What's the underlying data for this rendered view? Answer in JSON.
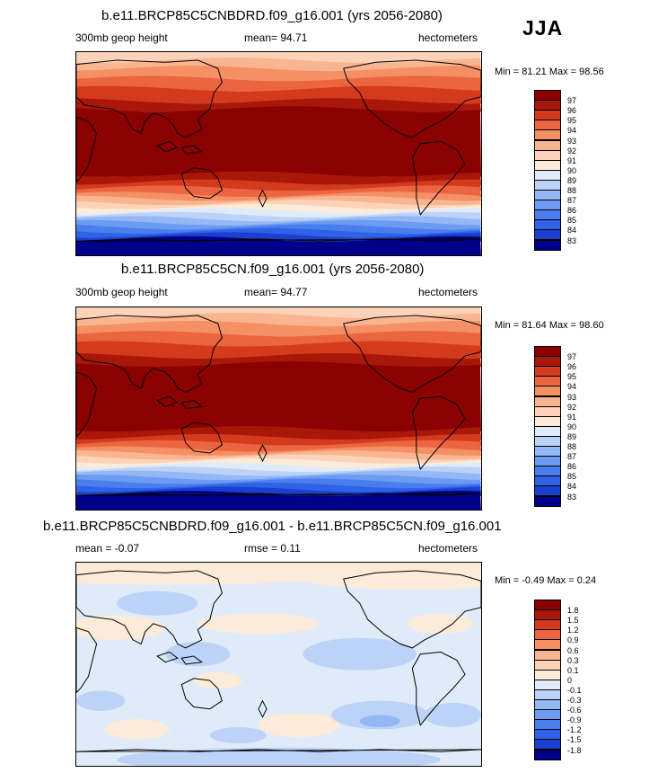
{
  "season": "JJA",
  "panels": [
    {
      "title": "b.e11.BRCP85C5CNBDRD.f09_g16.001 (yrs 2056-2080)",
      "left_label": "300mb geop height",
      "center_label": "mean=  94.71",
      "right_label": "hectometers",
      "minmax": "Min =  81.21 Max =  98.56"
    },
    {
      "title": "b.e11.BRCP85C5CN.f09_g16.001 (yrs 2056-2080)",
      "left_label": "300mb geop height",
      "center_label": "mean=  94.77",
      "right_label": "hectometers",
      "minmax": "Min =  81.64 Max =  98.60"
    },
    {
      "title": "b.e11.BRCP85C5CNBDRD.f09_g16.001 - b.e11.BRCP85C5CN.f09_g16.001",
      "left_label": "mean =  -0.07",
      "center_label": "rmse =   0.11",
      "right_label": "hectometers",
      "minmax": "Min = -0.49 Max =   0.24"
    }
  ],
  "chart_data": [
    {
      "type": "heatmap",
      "title": "b.e11.BRCP85C5CNBDRD.f09_g16.001 (yrs 2056-2080)",
      "variable": "300mb geop height",
      "units": "hectometers",
      "mean": 94.71,
      "min": 81.21,
      "max": 98.56,
      "levels": [
        "83",
        "84",
        "85",
        "86",
        "87",
        "88",
        "89",
        "90",
        "91",
        "92",
        "93",
        "94",
        "95",
        "96",
        "97"
      ],
      "colors": [
        "#00008a",
        "#1b3fcf",
        "#2f62e6",
        "#4a7eef",
        "#6d9bf2",
        "#94b8f5",
        "#bcd3f7",
        "#e0ebfa",
        "#fcebd9",
        "#fcd3b8",
        "#f9b490",
        "#f58f64",
        "#ea6540",
        "#d43a1e",
        "#a81708",
        "#8b0000"
      ]
    },
    {
      "type": "heatmap",
      "title": "b.e11.BRCP85C5CN.f09_g16.001 (yrs 2056-2080)",
      "variable": "300mb geop height",
      "units": "hectometers",
      "mean": 94.77,
      "min": 81.64,
      "max": 98.6,
      "levels": [
        "83",
        "84",
        "85",
        "86",
        "87",
        "88",
        "89",
        "90",
        "91",
        "92",
        "93",
        "94",
        "95",
        "96",
        "97"
      ],
      "colors": [
        "#00008a",
        "#1b3fcf",
        "#2f62e6",
        "#4a7eef",
        "#6d9bf2",
        "#94b8f5",
        "#bcd3f7",
        "#e0ebfa",
        "#fcebd9",
        "#fcd3b8",
        "#f9b490",
        "#f58f64",
        "#ea6540",
        "#d43a1e",
        "#a81708",
        "#8b0000"
      ]
    },
    {
      "type": "heatmap",
      "title": "b.e11.BRCP85C5CNBDRD.f09_g16.001 - b.e11.BRCP85C5CN.f09_g16.001",
      "units": "hectometers",
      "mean": -0.07,
      "rmse": 0.11,
      "min": -0.49,
      "max": 0.24,
      "levels": [
        "-1.8",
        "-1.5",
        "-1.2",
        "-0.9",
        "-0.6",
        "-0.3",
        "-0.1",
        "0",
        "0.1",
        "0.3",
        "0.6",
        "0.9",
        "1.2",
        "1.5",
        "1.8"
      ],
      "colors": [
        "#00008a",
        "#1b3fcf",
        "#2f62e6",
        "#4a7eef",
        "#6d9bf2",
        "#94b8f5",
        "#bcd3f7",
        "#e0ebfa",
        "#fcebd9",
        "#fcd3b8",
        "#f9b490",
        "#f58f64",
        "#ea6540",
        "#d43a1e",
        "#a81708",
        "#8b0000"
      ]
    }
  ]
}
